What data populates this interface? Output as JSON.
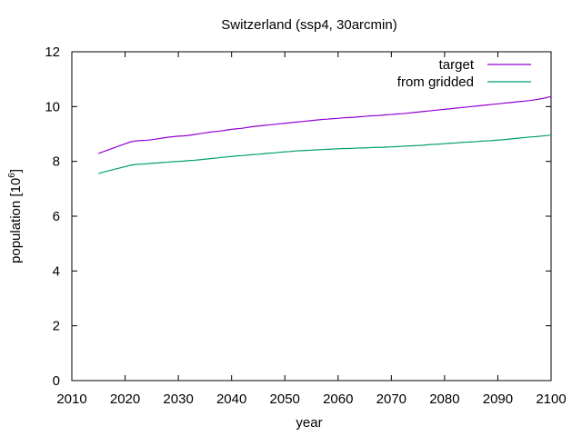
{
  "chart_data": {
    "type": "line",
    "title": "Switzerland (ssp4, 30arcmin)",
    "xlabel": "year",
    "ylabel": "population [10",
    "ylabel_sup": "6",
    "ylabel_end": "]",
    "xlim": [
      2010,
      2100
    ],
    "ylim": [
      0,
      12
    ],
    "xticks": [
      2010,
      2020,
      2030,
      2040,
      2050,
      2060,
      2070,
      2080,
      2090,
      2100
    ],
    "yticks": [
      0,
      2,
      4,
      6,
      8,
      10,
      12
    ],
    "grid": false,
    "legend_position": "top-right",
    "x": [
      2015,
      2016,
      2017,
      2018,
      2019,
      2020,
      2021,
      2022,
      2023,
      2024,
      2025,
      2026,
      2027,
      2028,
      2029,
      2030,
      2031,
      2032,
      2033,
      2034,
      2035,
      2036,
      2037,
      2038,
      2039,
      2040,
      2041,
      2042,
      2043,
      2044,
      2045,
      2046,
      2047,
      2048,
      2049,
      2050,
      2051,
      2052,
      2053,
      2054,
      2055,
      2056,
      2057,
      2058,
      2059,
      2060,
      2061,
      2062,
      2063,
      2064,
      2065,
      2066,
      2067,
      2068,
      2069,
      2070,
      2071,
      2072,
      2073,
      2074,
      2075,
      2076,
      2077,
      2078,
      2079,
      2080,
      2081,
      2082,
      2083,
      2084,
      2085,
      2086,
      2087,
      2088,
      2089,
      2090,
      2091,
      2092,
      2093,
      2094,
      2095,
      2096,
      2097,
      2098,
      2099,
      2100
    ],
    "series": [
      {
        "name": "target",
        "color": "#9400d3",
        "values": [
          8.29,
          8.36,
          8.43,
          8.5,
          8.57,
          8.64,
          8.71,
          8.75,
          8.76,
          8.77,
          8.79,
          8.82,
          8.85,
          8.88,
          8.9,
          8.92,
          8.93,
          8.95,
          8.98,
          9.01,
          9.04,
          9.07,
          9.09,
          9.11,
          9.14,
          9.17,
          9.19,
          9.21,
          9.24,
          9.27,
          9.29,
          9.31,
          9.33,
          9.35,
          9.37,
          9.39,
          9.41,
          9.43,
          9.45,
          9.47,
          9.49,
          9.51,
          9.53,
          9.54,
          9.56,
          9.57,
          9.59,
          9.6,
          9.61,
          9.63,
          9.64,
          9.66,
          9.67,
          9.68,
          9.7,
          9.71,
          9.73,
          9.74,
          9.76,
          9.78,
          9.8,
          9.82,
          9.84,
          9.86,
          9.88,
          9.9,
          9.92,
          9.94,
          9.96,
          9.98,
          10.0,
          10.02,
          10.04,
          10.06,
          10.08,
          10.1,
          10.12,
          10.14,
          10.16,
          10.18,
          10.2,
          10.22,
          10.25,
          10.28,
          10.32,
          10.37
        ]
      },
      {
        "name": "from gridded",
        "color": "#009e73",
        "values": [
          7.56,
          7.61,
          7.66,
          7.71,
          7.76,
          7.81,
          7.86,
          7.89,
          7.9,
          7.91,
          7.93,
          7.94,
          7.96,
          7.97,
          7.99,
          8.0,
          8.01,
          8.03,
          8.04,
          8.06,
          8.08,
          8.1,
          8.12,
          8.14,
          8.16,
          8.18,
          8.2,
          8.21,
          8.23,
          8.25,
          8.26,
          8.28,
          8.3,
          8.31,
          8.33,
          8.35,
          8.36,
          8.38,
          8.39,
          8.4,
          8.41,
          8.42,
          8.43,
          8.44,
          8.45,
          8.46,
          8.47,
          8.47,
          8.48,
          8.49,
          8.49,
          8.5,
          8.51,
          8.51,
          8.52,
          8.53,
          8.54,
          8.55,
          8.56,
          8.57,
          8.58,
          8.59,
          8.61,
          8.62,
          8.63,
          8.65,
          8.66,
          8.67,
          8.69,
          8.7,
          8.71,
          8.72,
          8.74,
          8.75,
          8.76,
          8.78,
          8.79,
          8.81,
          8.83,
          8.85,
          8.87,
          8.89,
          8.9,
          8.92,
          8.94,
          8.96
        ]
      }
    ]
  }
}
